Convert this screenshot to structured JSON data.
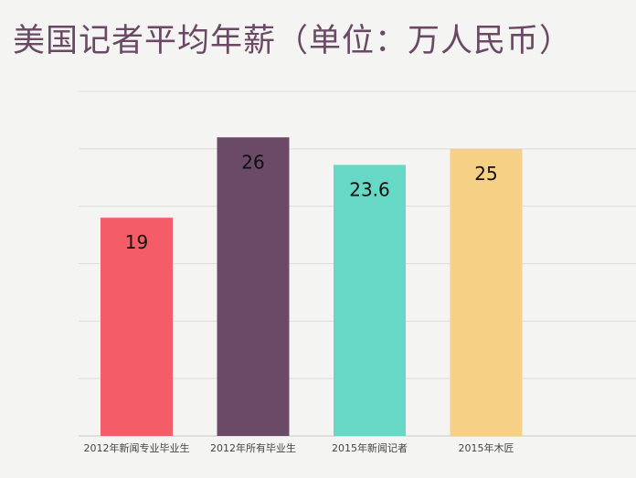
{
  "title": "美国记者平均年薪（单位：万人民币）",
  "chart_data": {
    "type": "bar",
    "title": "美国记者平均年薪（单位：万人民币）",
    "categories": [
      "2012年新闻专业毕业生",
      "2012年所有毕业生",
      "2015年新闻记者",
      "2015年木匠"
    ],
    "values": [
      19,
      26,
      23.6,
      25
    ],
    "data_labels": [
      "19",
      "26",
      "23.6",
      "25"
    ],
    "colors": [
      "#f45c67",
      "#6b4a68",
      "#67d8c5",
      "#f6d084"
    ],
    "ylim": [
      0,
      30
    ],
    "grid": true,
    "xlabel": "",
    "ylabel": ""
  }
}
